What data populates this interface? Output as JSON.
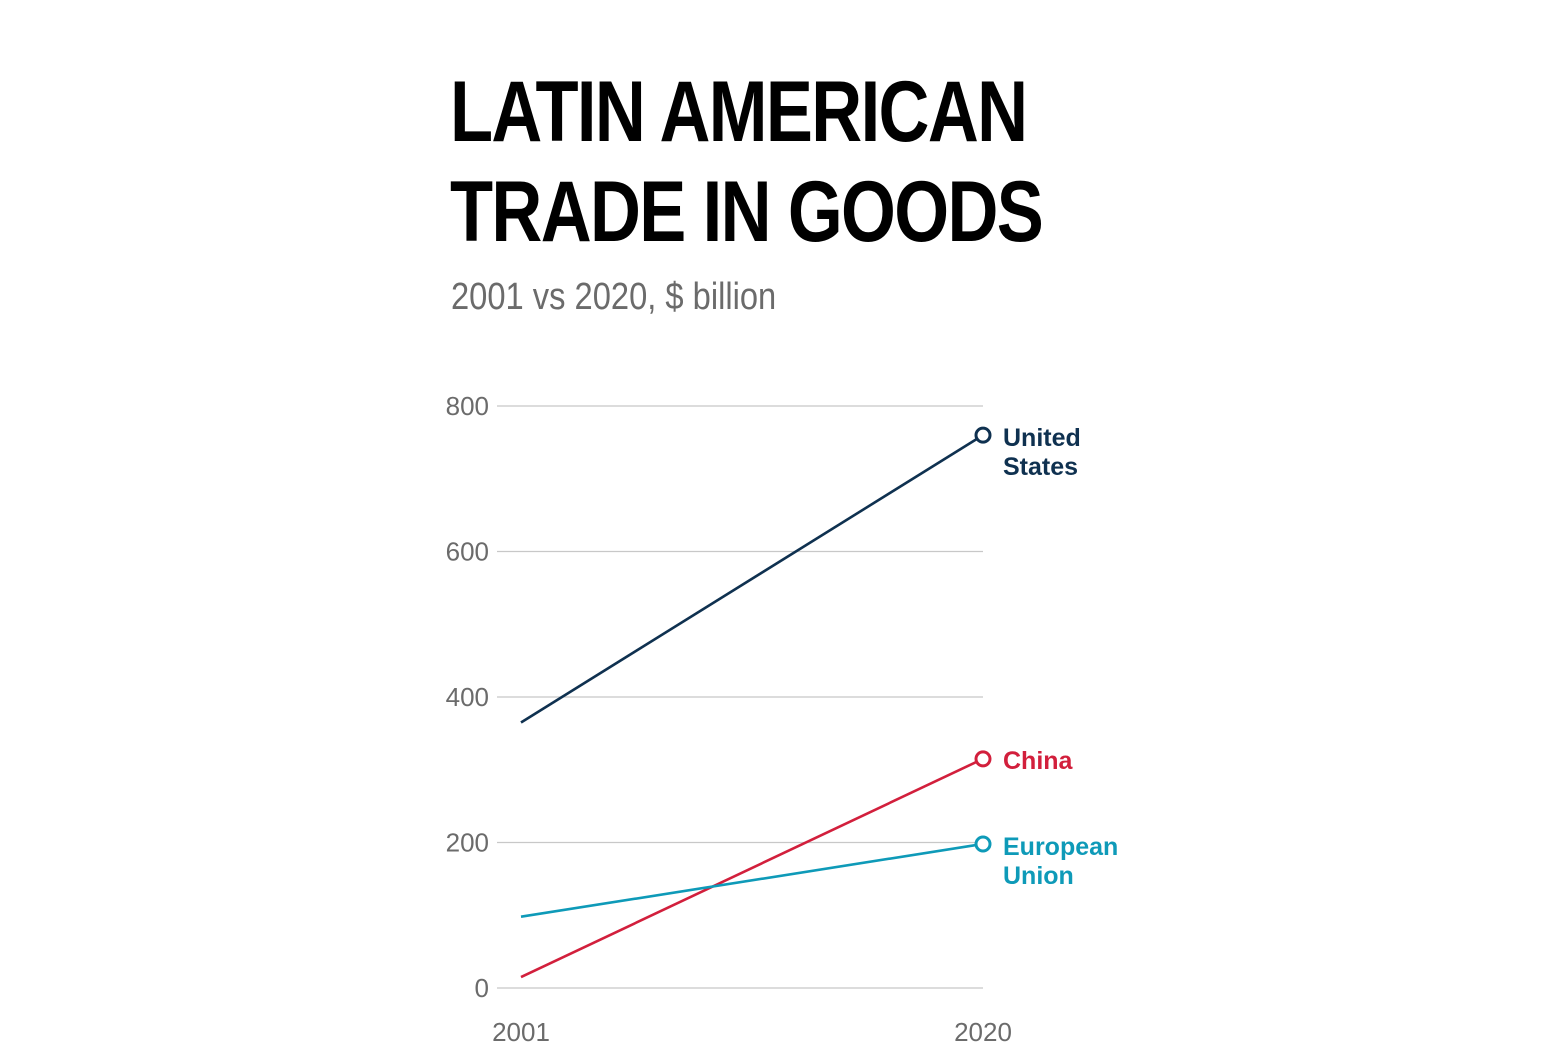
{
  "title_lines": [
    "LATIN AMERICAN",
    "TRADE IN GOODS"
  ],
  "subtitle": "2001 vs 2020, $ billion",
  "chart_data": {
    "type": "line",
    "x": [
      "2001",
      "2020"
    ],
    "ylim": [
      0,
      800
    ],
    "yticks": [
      0,
      200,
      400,
      600,
      800
    ],
    "grid": true,
    "series": [
      {
        "name": "United States",
        "label_lines": [
          "United",
          "States"
        ],
        "color": "#0f3150",
        "values": [
          365,
          760
        ]
      },
      {
        "name": "China",
        "label_lines": [
          "China"
        ],
        "color": "#d21f3c",
        "values": [
          15,
          315
        ]
      },
      {
        "name": "European Union",
        "label_lines": [
          "European",
          "Union"
        ],
        "color": "#0e9ab8",
        "values": [
          98,
          198
        ]
      }
    ]
  }
}
